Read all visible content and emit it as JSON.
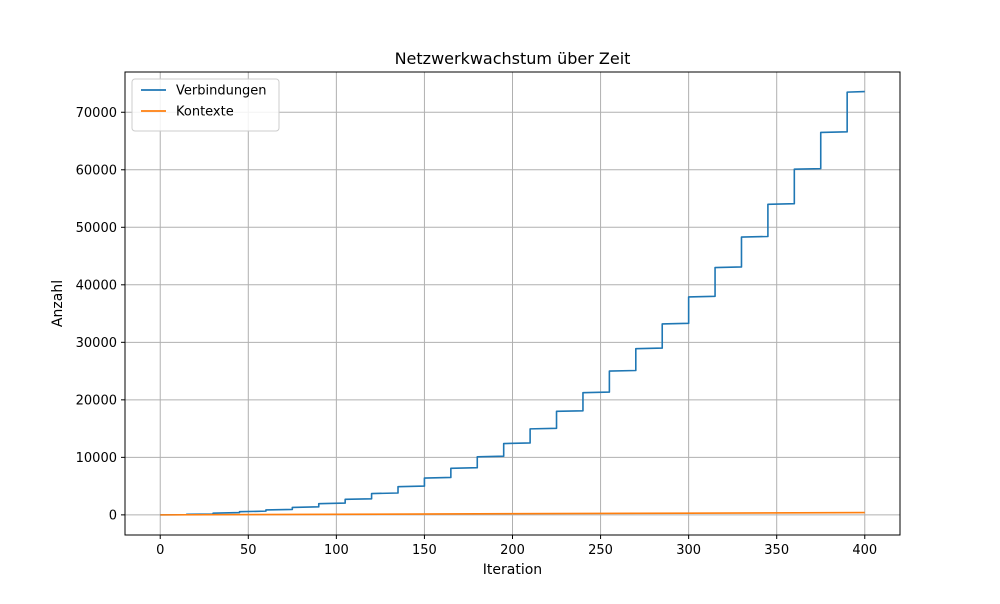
{
  "chart_data": {
    "type": "line",
    "title": "Netzwerkwachstum über Zeit",
    "xlabel": "Iteration",
    "ylabel": "Anzahl",
    "xlim": [
      -20,
      420
    ],
    "ylim": [
      -3500,
      77000
    ],
    "grid": true,
    "legend_position": "top-left",
    "x_ticks": [
      0,
      50,
      100,
      150,
      200,
      250,
      300,
      350,
      400
    ],
    "x_tick_labels": [
      "0",
      "50",
      "100",
      "150",
      "200",
      "250",
      "300",
      "350",
      "400"
    ],
    "y_ticks": [
      0,
      10000,
      20000,
      30000,
      40000,
      50000,
      60000,
      70000
    ],
    "y_tick_labels": [
      "0",
      "10000",
      "20000",
      "30000",
      "40000",
      "50000",
      "60000",
      "70000"
    ],
    "series": [
      {
        "name": "Verbindungen",
        "color": "#1f77b4",
        "x": [
          0,
          15,
          15,
          30,
          30,
          45,
          45,
          60,
          60,
          75,
          75,
          90,
          90,
          105,
          105,
          120,
          120,
          135,
          135,
          150,
          150,
          165,
          165,
          180,
          180,
          195,
          195,
          210,
          210,
          225,
          225,
          240,
          240,
          255,
          255,
          270,
          270,
          285,
          285,
          300,
          300,
          315,
          315,
          330,
          330,
          345,
          345,
          360,
          360,
          375,
          375,
          390,
          390,
          400
        ],
        "values": [
          0,
          20,
          100,
          150,
          300,
          400,
          550,
          650,
          850,
          950,
          1300,
          1400,
          1950,
          2050,
          2700,
          2800,
          3700,
          3800,
          4900,
          5000,
          6400,
          6500,
          8100,
          8200,
          10100,
          10200,
          12400,
          12500,
          14950,
          15050,
          18000,
          18100,
          21250,
          21350,
          25000,
          25100,
          28900,
          29000,
          33200,
          33300,
          37900,
          38000,
          43000,
          43100,
          48300,
          48400,
          54000,
          54100,
          60100,
          60200,
          66500,
          66600,
          73500,
          73600
        ]
      },
      {
        "name": "Kontexte",
        "color": "#ff7f0e",
        "x": [
          0,
          100,
          200,
          300,
          400
        ],
        "values": [
          0,
          100,
          200,
          300,
          400
        ]
      }
    ]
  }
}
